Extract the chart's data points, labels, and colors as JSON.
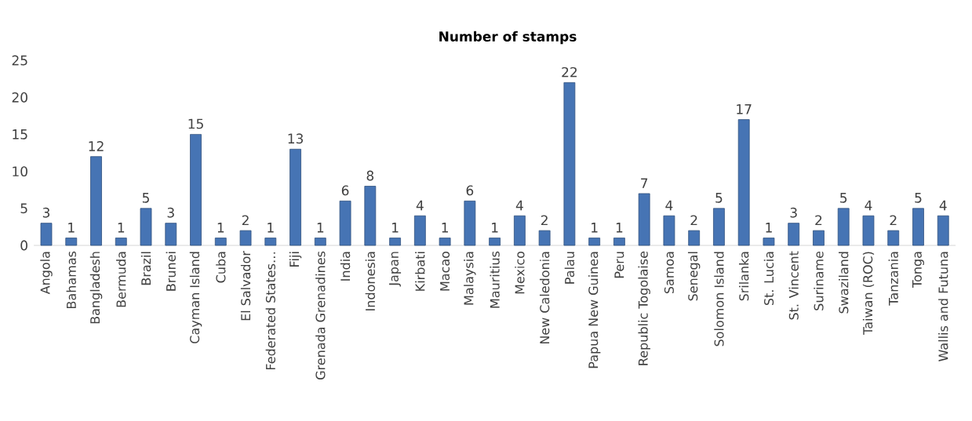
{
  "chart_data": {
    "type": "bar",
    "title": "Number of stamps",
    "categories": [
      "Angola",
      "Bahamas",
      "Bangladesh",
      "Bermuda",
      "Brazil",
      "Brunei",
      "Cayman Island",
      "Cuba",
      "El Salvador",
      "Federated States…",
      "Fiji",
      "Grenada Grenadines",
      "India",
      "Indonesia",
      "Japan",
      "Kirbati",
      "Macao",
      "Malaysia",
      "Mauritius",
      "Mexico",
      "New Caledonia",
      "Palau",
      "Papua New Guinea",
      "Peru",
      "Republic Togolaise",
      "Samoa",
      "Senegal",
      "Solomon Island",
      "Srilanka",
      "St. Lucia",
      "St. Vincent",
      "Suriname",
      "Swaziland",
      "Taiwan (ROC)",
      "Tanzania",
      "Tonga",
      "Wallis and Futuna"
    ],
    "values": [
      3,
      1,
      12,
      1,
      5,
      3,
      15,
      1,
      2,
      1,
      13,
      1,
      6,
      8,
      1,
      4,
      1,
      6,
      1,
      4,
      2,
      22,
      1,
      1,
      7,
      4,
      2,
      5,
      17,
      1,
      3,
      2,
      5,
      4,
      2,
      5,
      4
    ],
    "color": "#4674b4",
    "ylim": [
      0,
      25
    ],
    "yticks": [
      0,
      5,
      10,
      15,
      20,
      25
    ],
    "data_labels": true
  }
}
